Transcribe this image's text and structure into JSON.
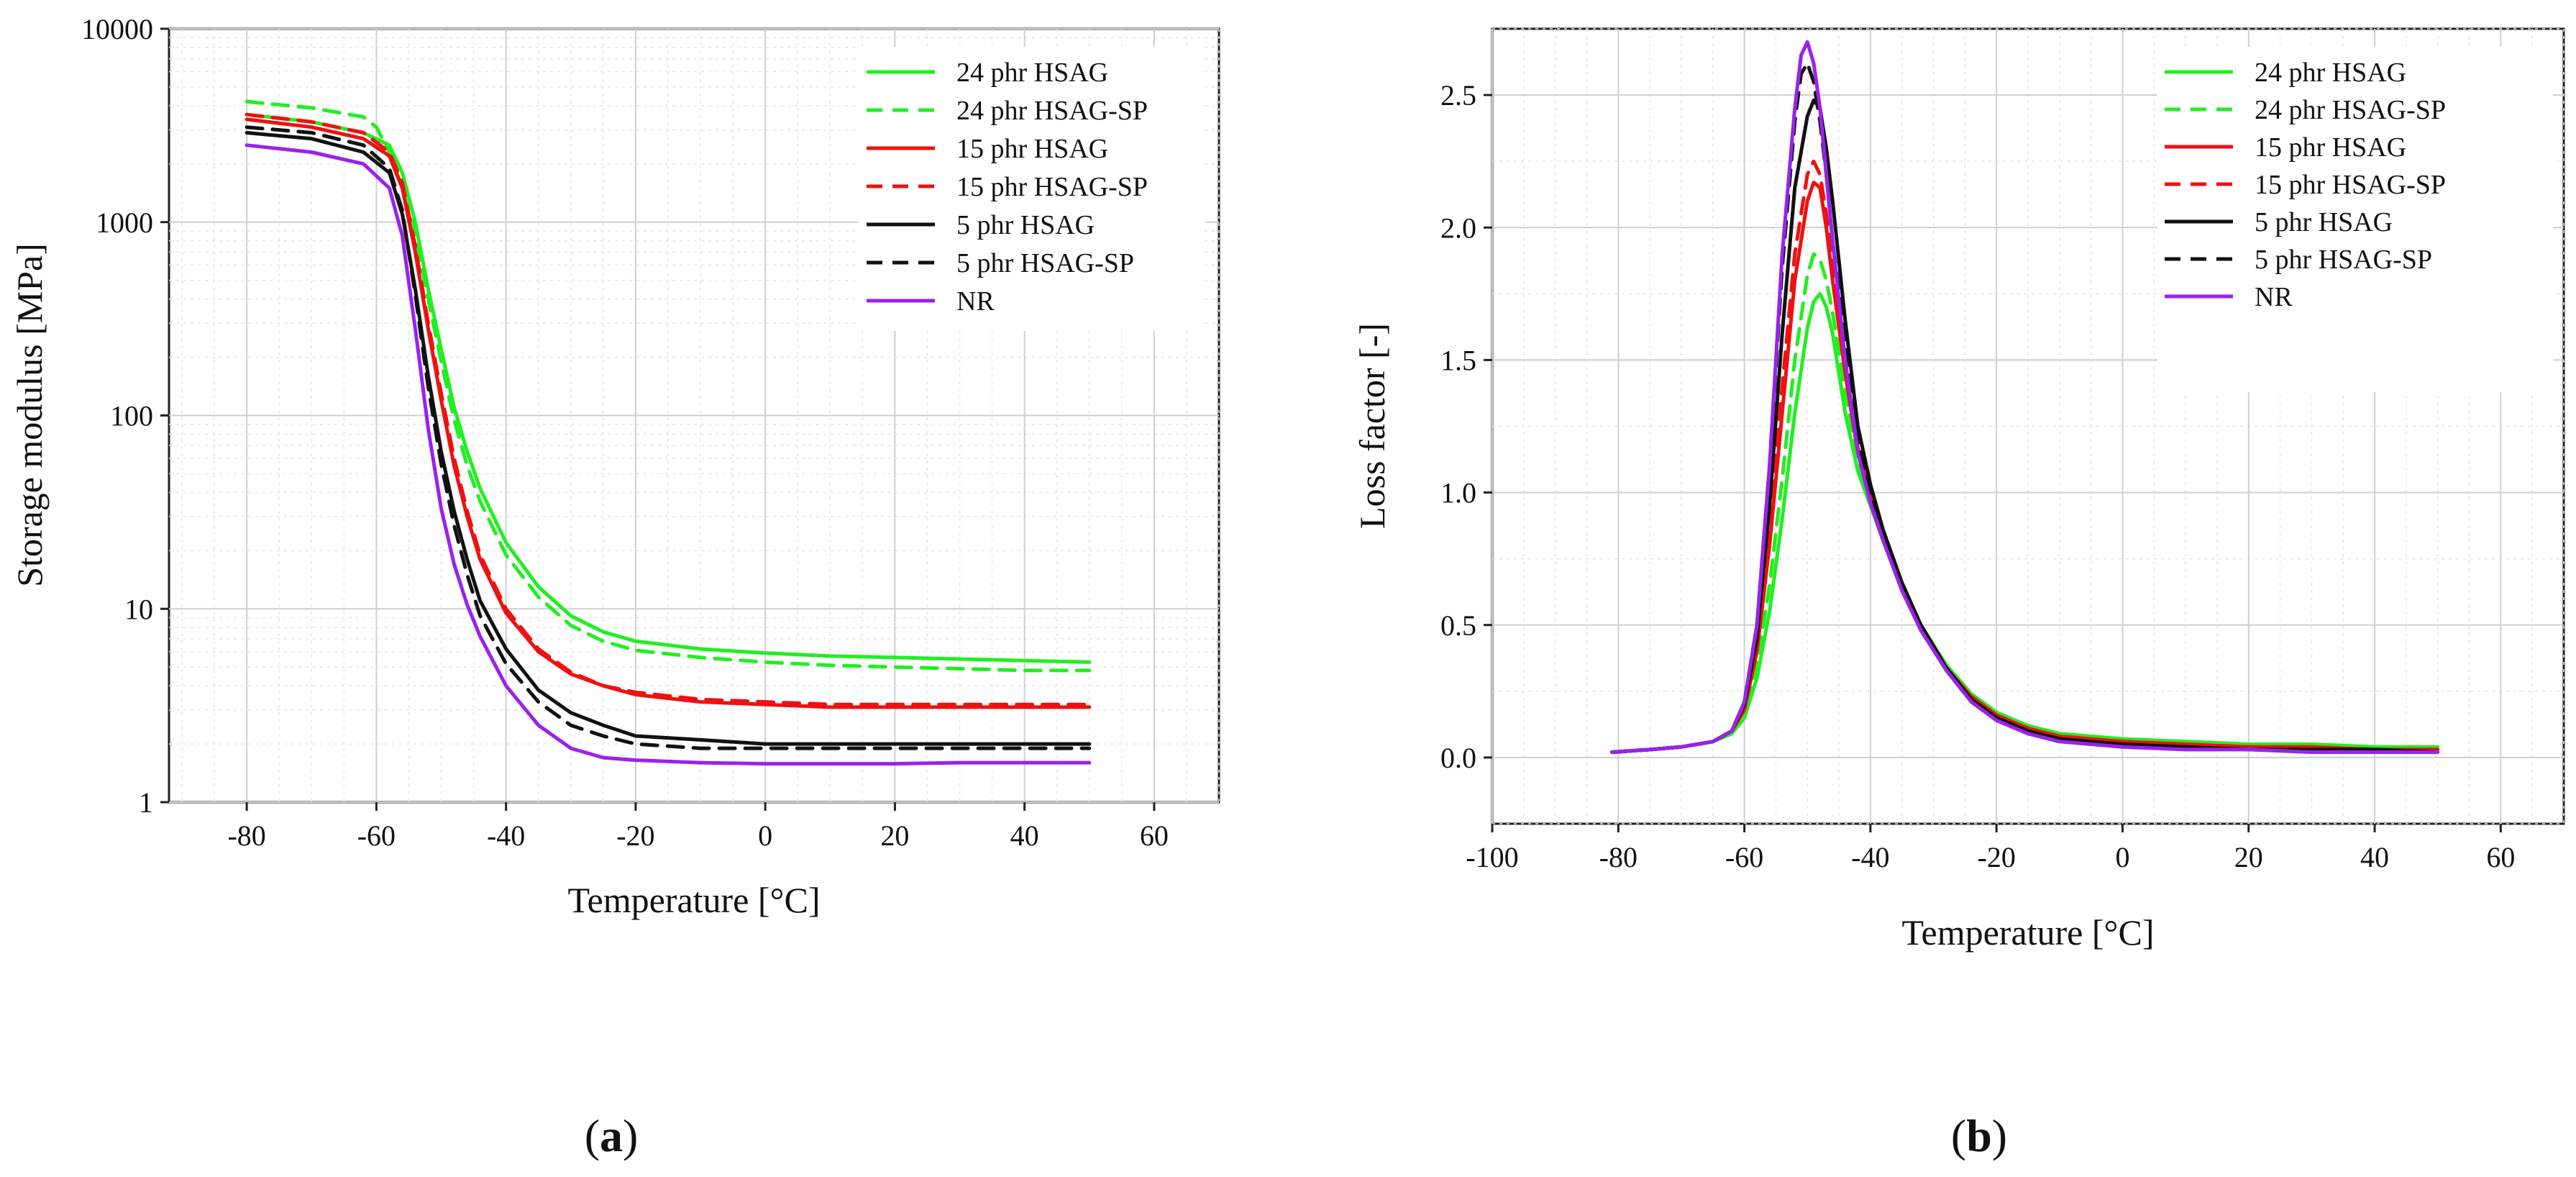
{
  "chart_data": [
    {
      "type": "line",
      "panel_label": "a",
      "xlabel": "Temperature [°C]",
      "ylabel": "Storage modulus [MPa]",
      "xlim": [
        -92,
        70
      ],
      "ylim": [
        1,
        10000
      ],
      "yscale": "log",
      "xticks": [
        "-80",
        "-60",
        "-40",
        "-20",
        "0",
        "20",
        "40",
        "60"
      ],
      "yticks": [
        "1",
        "10",
        "100",
        "1000",
        "10000"
      ],
      "xtick_values": [
        -80,
        -60,
        -40,
        -20,
        0,
        20,
        40,
        60
      ],
      "ytick_values": [
        1,
        10,
        100,
        1000,
        10000
      ],
      "series": [
        {
          "name": "24 phr HSAG",
          "color": "#22ee22",
          "dash": "solid",
          "x": [
            -80,
            -70,
            -62,
            -58,
            -56,
            -54,
            -52,
            -50,
            -48,
            -46,
            -44,
            -40,
            -35,
            -30,
            -25,
            -20,
            -10,
            0,
            10,
            20,
            30,
            40,
            50
          ],
          "y": [
            3600,
            3300,
            2900,
            2500,
            1800,
            1000,
            450,
            220,
            110,
            65,
            42,
            22,
            13,
            9.2,
            7.6,
            6.8,
            6.2,
            5.9,
            5.7,
            5.6,
            5.5,
            5.4,
            5.3
          ]
        },
        {
          "name": "24 phr HSAG-SP",
          "color": "#22ee22",
          "dash": "dash",
          "x": [
            -80,
            -70,
            -62,
            -60,
            -58,
            -56,
            -54,
            -52,
            -50,
            -48,
            -46,
            -44,
            -40,
            -35,
            -30,
            -25,
            -20,
            -10,
            0,
            10,
            20,
            30,
            40,
            50
          ],
          "y": [
            4200,
            3900,
            3500,
            3100,
            2300,
            1500,
            850,
            400,
            190,
            95,
            55,
            36,
            19,
            11.5,
            8.2,
            6.8,
            6.1,
            5.6,
            5.3,
            5.1,
            5.0,
            4.9,
            4.8,
            4.8
          ]
        },
        {
          "name": "15 phr HSAG",
          "color": "#ee1111",
          "dash": "solid",
          "x": [
            -80,
            -70,
            -62,
            -58,
            -56,
            -54,
            -52,
            -50,
            -48,
            -46,
            -44,
            -40,
            -35,
            -30,
            -25,
            -20,
            -10,
            0,
            10,
            20,
            30,
            40,
            50
          ],
          "y": [
            3400,
            3100,
            2700,
            2200,
            1500,
            700,
            280,
            120,
            55,
            30,
            18,
            9.5,
            6.0,
            4.6,
            4.0,
            3.6,
            3.3,
            3.2,
            3.1,
            3.1,
            3.1,
            3.1,
            3.1
          ]
        },
        {
          "name": "15 phr HSAG-SP",
          "color": "#ee1111",
          "dash": "dash",
          "x": [
            -80,
            -70,
            -62,
            -58,
            -56,
            -54,
            -52,
            -50,
            -48,
            -46,
            -44,
            -40,
            -35,
            -30,
            -25,
            -20,
            -10,
            0,
            10,
            20,
            30,
            40,
            50
          ],
          "y": [
            3600,
            3300,
            2900,
            2300,
            1600,
            750,
            300,
            130,
            60,
            32,
            19,
            10,
            6.2,
            4.7,
            4.0,
            3.7,
            3.4,
            3.3,
            3.2,
            3.2,
            3.2,
            3.2,
            3.2
          ]
        },
        {
          "name": "5 phr HSAG",
          "color": "#111111",
          "dash": "solid",
          "x": [
            -80,
            -70,
            -62,
            -58,
            -56,
            -54,
            -52,
            -50,
            -48,
            -46,
            -44,
            -40,
            -35,
            -30,
            -25,
            -20,
            -10,
            0,
            10,
            20,
            30,
            40,
            50
          ],
          "y": [
            2900,
            2700,
            2300,
            1800,
            1100,
            450,
            160,
            65,
            32,
            18,
            11,
            6.2,
            3.8,
            2.9,
            2.5,
            2.2,
            2.1,
            2.0,
            2.0,
            2.0,
            2.0,
            2.0,
            2.0
          ]
        },
        {
          "name": "5 phr HSAG-SP",
          "color": "#111111",
          "dash": "dash",
          "x": [
            -80,
            -70,
            -62,
            -58,
            -56,
            -54,
            -52,
            -50,
            -48,
            -46,
            -44,
            -40,
            -35,
            -30,
            -25,
            -20,
            -10,
            0,
            10,
            20,
            30,
            40,
            50
          ],
          "y": [
            3100,
            2900,
            2500,
            1900,
            1150,
            420,
            140,
            56,
            27,
            15,
            9.2,
            5.2,
            3.3,
            2.5,
            2.2,
            2.0,
            1.9,
            1.9,
            1.9,
            1.9,
            1.9,
            1.9,
            1.9
          ]
        },
        {
          "name": "NR",
          "color": "#9922ee",
          "dash": "solid",
          "x": [
            -80,
            -70,
            -62,
            -58,
            -56,
            -54,
            -52,
            -50,
            -48,
            -46,
            -44,
            -40,
            -35,
            -30,
            -25,
            -20,
            -10,
            0,
            10,
            20,
            30,
            40,
            50
          ],
          "y": [
            2500,
            2300,
            2000,
            1500,
            850,
            280,
            85,
            33,
            17,
            10.5,
            7.2,
            4.0,
            2.5,
            1.9,
            1.7,
            1.65,
            1.6,
            1.58,
            1.58,
            1.58,
            1.6,
            1.6,
            1.6
          ]
        }
      ]
    },
    {
      "type": "line",
      "panel_label": "b",
      "xlabel": "Temperature [°C]",
      "ylabel": "Loss factor [-]",
      "xlim": [
        -100,
        70
      ],
      "ylim": [
        -0.25,
        2.75
      ],
      "yscale": "linear",
      "xticks": [
        "-100",
        "-80",
        "-60",
        "-40",
        "-20",
        "0",
        "20",
        "40",
        "60"
      ],
      "yticks": [
        "0.0",
        "0.5",
        "1.0",
        "1.5",
        "2.0",
        "2.5"
      ],
      "xtick_values": [
        -100,
        -80,
        -60,
        -40,
        -20,
        0,
        20,
        40,
        60
      ],
      "ytick_values": [
        0.0,
        0.5,
        1.0,
        1.5,
        2.0,
        2.5
      ],
      "series": [
        {
          "name": "24 phr HSAG",
          "color": "#22ee22",
          "dash": "solid",
          "x": [
            -81,
            -75,
            -70,
            -65,
            -62,
            -60,
            -58,
            -56,
            -54,
            -52,
            -50,
            -49,
            -48,
            -47,
            -46,
            -44,
            -42,
            -40,
            -38,
            -35,
            -32,
            -28,
            -24,
            -20,
            -15,
            -10,
            0,
            10,
            20,
            30,
            40,
            50
          ],
          "y": [
            0.02,
            0.03,
            0.04,
            0.06,
            0.09,
            0.15,
            0.3,
            0.55,
            0.9,
            1.3,
            1.62,
            1.72,
            1.75,
            1.7,
            1.6,
            1.3,
            1.08,
            0.95,
            0.82,
            0.65,
            0.5,
            0.35,
            0.24,
            0.17,
            0.12,
            0.09,
            0.07,
            0.06,
            0.05,
            0.05,
            0.04,
            0.04
          ]
        },
        {
          "name": "24 phr HSAG-SP",
          "color": "#22ee22",
          "dash": "dash",
          "x": [
            -81,
            -75,
            -70,
            -65,
            -62,
            -60,
            -58,
            -56,
            -54,
            -52,
            -50,
            -49,
            -48,
            -47,
            -46,
            -44,
            -42,
            -40,
            -38,
            -35,
            -32,
            -28,
            -24,
            -20,
            -15,
            -10,
            0,
            10,
            20,
            30,
            40,
            50
          ],
          "y": [
            0.02,
            0.03,
            0.04,
            0.06,
            0.1,
            0.17,
            0.35,
            0.65,
            1.05,
            1.5,
            1.82,
            1.9,
            1.88,
            1.8,
            1.68,
            1.38,
            1.12,
            0.97,
            0.83,
            0.65,
            0.5,
            0.35,
            0.24,
            0.17,
            0.12,
            0.09,
            0.07,
            0.06,
            0.05,
            0.05,
            0.04,
            0.04
          ]
        },
        {
          "name": "15 phr HSAG",
          "color": "#ee1111",
          "dash": "solid",
          "x": [
            -81,
            -75,
            -70,
            -65,
            -62,
            -60,
            -58,
            -56,
            -54,
            -52,
            -50,
            -49,
            -48,
            -47,
            -46,
            -44,
            -42,
            -40,
            -38,
            -35,
            -32,
            -28,
            -24,
            -20,
            -15,
            -10,
            0,
            10,
            20,
            30,
            40,
            50
          ],
          "y": [
            0.02,
            0.03,
            0.04,
            0.06,
            0.1,
            0.18,
            0.4,
            0.8,
            1.3,
            1.8,
            2.1,
            2.17,
            2.15,
            2.0,
            1.8,
            1.45,
            1.15,
            0.98,
            0.83,
            0.65,
            0.5,
            0.34,
            0.23,
            0.16,
            0.11,
            0.08,
            0.06,
            0.05,
            0.04,
            0.04,
            0.03,
            0.03
          ]
        },
        {
          "name": "15 phr HSAG-SP",
          "color": "#ee1111",
          "dash": "dash",
          "x": [
            -81,
            -75,
            -70,
            -65,
            -62,
            -60,
            -58,
            -56,
            -54,
            -52,
            -50,
            -49,
            -48,
            -47,
            -46,
            -44,
            -42,
            -40,
            -38,
            -35,
            -32,
            -28,
            -24,
            -20,
            -15,
            -10,
            0,
            10,
            20,
            30,
            40,
            50
          ],
          "y": [
            0.02,
            0.03,
            0.04,
            0.06,
            0.1,
            0.19,
            0.42,
            0.85,
            1.4,
            1.9,
            2.2,
            2.25,
            2.2,
            2.05,
            1.85,
            1.48,
            1.17,
            0.99,
            0.84,
            0.65,
            0.5,
            0.34,
            0.23,
            0.16,
            0.11,
            0.08,
            0.06,
            0.05,
            0.04,
            0.04,
            0.03,
            0.03
          ]
        },
        {
          "name": "5 phr HSAG",
          "color": "#111111",
          "dash": "solid",
          "x": [
            -81,
            -75,
            -70,
            -65,
            -62,
            -60,
            -58,
            -56,
            -54,
            -52,
            -50,
            -49,
            -48,
            -47,
            -46,
            -44,
            -42,
            -40,
            -38,
            -35,
            -32,
            -28,
            -24,
            -20,
            -15,
            -10,
            0,
            10,
            20,
            30,
            40,
            50
          ],
          "y": [
            0.02,
            0.03,
            0.04,
            0.06,
            0.1,
            0.2,
            0.45,
            0.95,
            1.6,
            2.15,
            2.42,
            2.48,
            2.45,
            2.3,
            2.1,
            1.65,
            1.25,
            1.03,
            0.86,
            0.66,
            0.5,
            0.34,
            0.22,
            0.15,
            0.1,
            0.07,
            0.05,
            0.04,
            0.03,
            0.03,
            0.03,
            0.02
          ]
        },
        {
          "name": "5 phr HSAG-SP",
          "color": "#111111",
          "dash": "dash",
          "x": [
            -81,
            -75,
            -70,
            -65,
            -62,
            -60,
            -58,
            -56,
            -54,
            -52,
            -51,
            -50,
            -49,
            -48,
            -47,
            -46,
            -44,
            -42,
            -40,
            -38,
            -35,
            -32,
            -28,
            -24,
            -20,
            -15,
            -10,
            0,
            10,
            20,
            30,
            40,
            50
          ],
          "y": [
            0.02,
            0.03,
            0.04,
            0.06,
            0.1,
            0.21,
            0.5,
            1.1,
            1.85,
            2.4,
            2.58,
            2.62,
            2.55,
            2.4,
            2.2,
            1.95,
            1.55,
            1.2,
            1.0,
            0.85,
            0.65,
            0.5,
            0.34,
            0.22,
            0.15,
            0.1,
            0.07,
            0.05,
            0.04,
            0.03,
            0.03,
            0.03,
            0.02
          ]
        },
        {
          "name": "NR",
          "color": "#9922ee",
          "dash": "solid",
          "x": [
            -81,
            -75,
            -70,
            -65,
            -62,
            -60,
            -58,
            -56,
            -54,
            -52,
            -51,
            -50,
            -49,
            -48,
            -47,
            -46,
            -44,
            -42,
            -40,
            -38,
            -35,
            -32,
            -28,
            -24,
            -20,
            -15,
            -10,
            0,
            10,
            20,
            30,
            40,
            50
          ],
          "y": [
            0.02,
            0.03,
            0.04,
            0.06,
            0.1,
            0.21,
            0.5,
            1.1,
            1.9,
            2.45,
            2.65,
            2.7,
            2.62,
            2.45,
            2.2,
            1.95,
            1.5,
            1.15,
            0.96,
            0.82,
            0.63,
            0.48,
            0.33,
            0.21,
            0.14,
            0.09,
            0.06,
            0.04,
            0.03,
            0.03,
            0.02,
            0.02,
            0.02
          ]
        }
      ]
    }
  ],
  "captions": {
    "a": "a",
    "b": "b"
  },
  "colors": {
    "green": "#22ee22",
    "red": "#ee1111",
    "black": "#111111",
    "violet": "#9922ee",
    "grid": "#cfcfcf",
    "minor_grid": "#e6e6e6",
    "axis": "#222222"
  }
}
